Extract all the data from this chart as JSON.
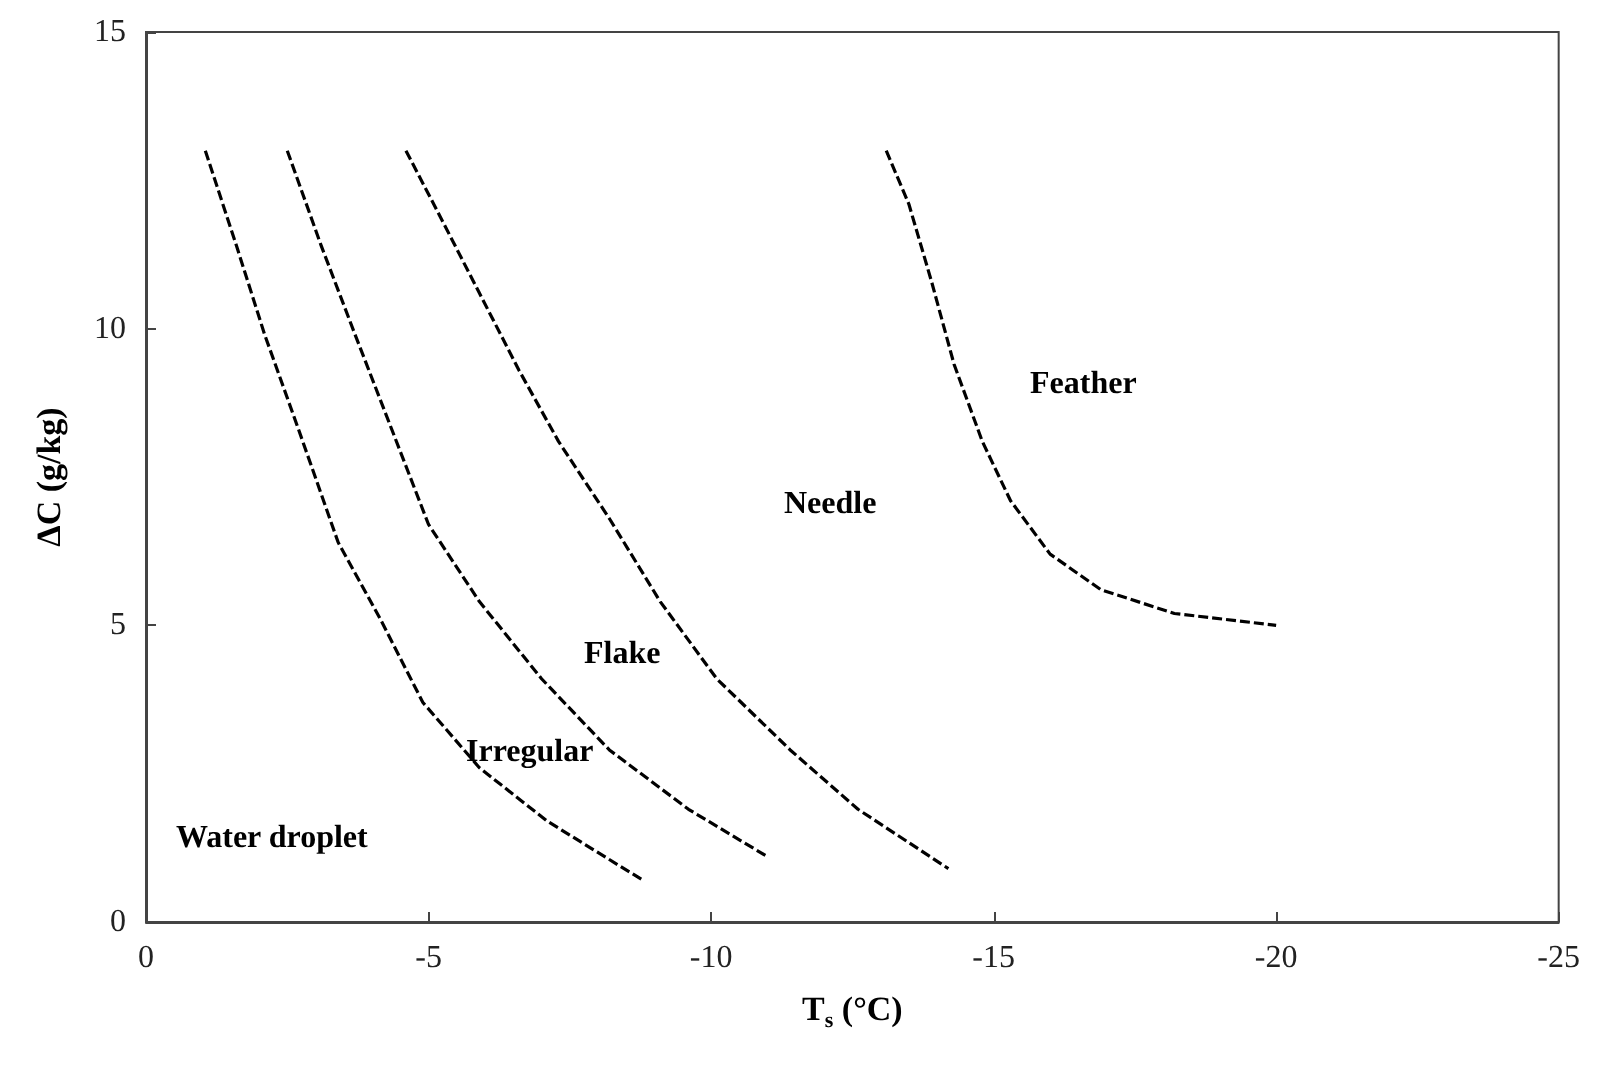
{
  "chart_data": {
    "type": "line",
    "xlabel": "T$_{s}$ (°C)",
    "ylabel": "ΔC (g/kg)",
    "xlim": [
      0,
      -25
    ],
    "xticks": [
      0,
      -5,
      -10,
      -15,
      -20,
      -25
    ],
    "ylim": [
      0,
      15
    ],
    "yticks": [
      0,
      5,
      10,
      15
    ],
    "marker": "none",
    "line_style": "dashed",
    "series": [
      {
        "color": "#000000",
        "x": [
          -1.05,
          -1.6,
          -2.1,
          -2.7,
          -3.4,
          -4.15,
          -4.9,
          -5.9,
          -7.1,
          -8.8
        ],
        "values": [
          13,
          11.4,
          9.9,
          8.3,
          6.4,
          5.1,
          3.7,
          2.6,
          1.7,
          0.7
        ]
      },
      {
        "color": "#000000",
        "x": [
          -2.5,
          -3.1,
          -3.7,
          -4.35,
          -5.0,
          -5.9,
          -7.0,
          -8.2,
          -9.6,
          -11.0
        ],
        "values": [
          13,
          11.4,
          9.9,
          8.3,
          6.7,
          5.4,
          4.1,
          2.9,
          1.9,
          1.1
        ]
      },
      {
        "color": "#000000",
        "x": [
          -4.6,
          -5.2,
          -5.9,
          -6.6,
          -7.3,
          -8.2,
          -9.1,
          -10.1,
          -11.4,
          -12.6,
          -14.2
        ],
        "values": [
          13,
          11.9,
          10.6,
          9.3,
          8.1,
          6.8,
          5.4,
          4.1,
          2.9,
          1.9,
          0.9
        ]
      },
      {
        "color": "#000000",
        "x": [
          -13.1,
          -13.5,
          -13.9,
          -14.3,
          -14.8,
          -15.3,
          -16.0,
          -16.9,
          -18.2,
          -20.0
        ],
        "values": [
          13,
          12.1,
          10.8,
          9.4,
          8.1,
          7.1,
          6.2,
          5.6,
          5.2,
          5.0
        ]
      }
    ],
    "annotations": [
      "Water droplet",
      "Irregular",
      "Flake",
      "Needle",
      "Feather"
    ]
  }
}
